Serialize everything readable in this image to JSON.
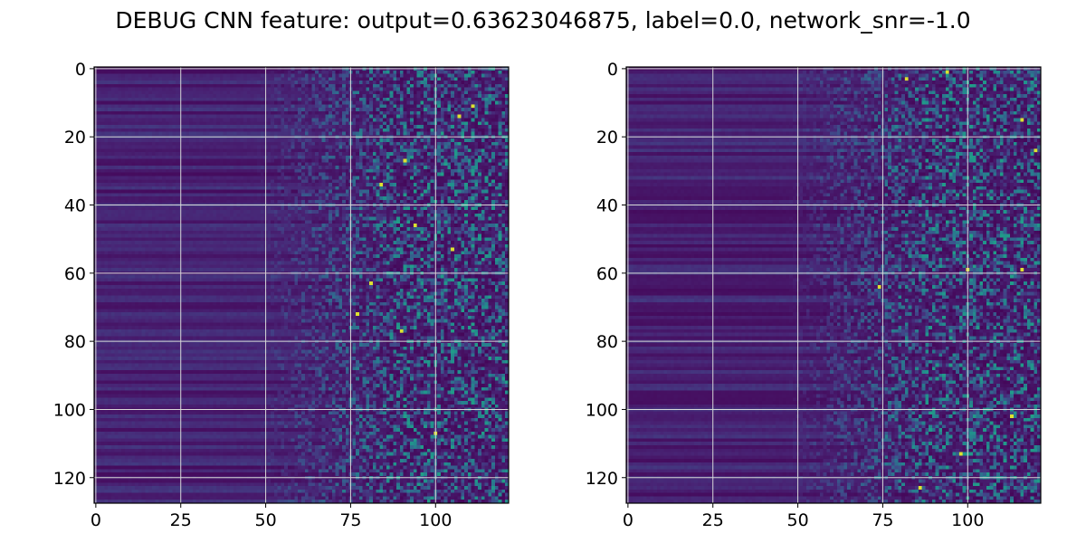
{
  "title": "DEBUG CNN feature: output=0.63623046875, label=0.0, network_snr=-1.0",
  "colors": {
    "colormap": "viridis",
    "grid": "#d8d8d8",
    "axis": "#000000"
  },
  "chart_data": [
    {
      "type": "heatmap",
      "title": "",
      "xlabel": "",
      "ylabel": "",
      "n_cols": 122,
      "n_rows": 128,
      "xlim": [
        -0.5,
        121.5
      ],
      "ylim": [
        127.5,
        -0.5
      ],
      "xticks": [
        0,
        25,
        50,
        75,
        100
      ],
      "yticks": [
        0,
        20,
        40,
        60,
        80,
        100,
        120
      ],
      "grid": true,
      "colormap": "viridis",
      "pattern": "dark left region (cols 0-45), sparse bright noisy pixels increasing toward the right (cols 60-121)",
      "highlight_cells": [
        [
          84,
          34
        ],
        [
          91,
          27
        ],
        [
          111,
          11
        ],
        [
          81,
          63
        ],
        [
          94,
          46
        ],
        [
          105,
          53
        ],
        [
          100,
          107
        ],
        [
          77,
          72
        ],
        [
          90,
          77
        ],
        [
          107,
          14
        ]
      ]
    },
    {
      "type": "heatmap",
      "title": "",
      "xlabel": "",
      "ylabel": "",
      "n_cols": 122,
      "n_rows": 128,
      "xlim": [
        -0.5,
        121.5
      ],
      "ylim": [
        127.5,
        -0.5
      ],
      "xticks": [
        0,
        25,
        50,
        75,
        100
      ],
      "yticks": [
        0,
        20,
        40,
        60,
        80,
        100,
        120
      ],
      "grid": true,
      "colormap": "viridis",
      "pattern": "dark left region (cols 0-50), sparse bright noisy pixels increasing toward the right (cols 60-121)",
      "highlight_cells": [
        [
          82,
          3
        ],
        [
          116,
          15
        ],
        [
          100,
          59
        ],
        [
          116,
          59
        ],
        [
          113,
          102
        ],
        [
          86,
          123
        ],
        [
          74,
          64
        ],
        [
          98,
          113
        ],
        [
          94,
          1
        ],
        [
          120,
          24
        ]
      ]
    }
  ]
}
